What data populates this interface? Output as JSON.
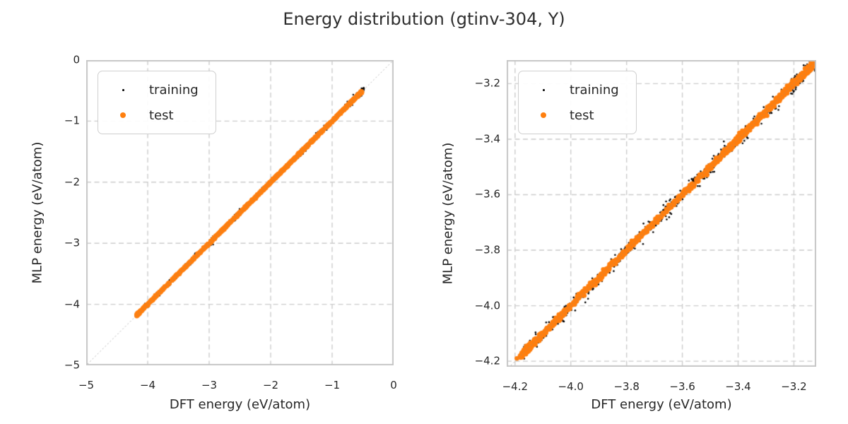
{
  "figure": {
    "title": "Energy distribution (gtinv-304, Y)",
    "background": "#ffffff",
    "text_color": "#262626",
    "grid_color": "#cccccc",
    "spine_color": "#c6c6c6",
    "identity_line_color": "#8f8f8f"
  },
  "chart_data": [
    {
      "id": "left",
      "type": "scatter",
      "xlabel": "DFT energy (eV/atom)",
      "ylabel": "MLP energy (eV/atom)",
      "xlim": [
        -5,
        0
      ],
      "ylim": [
        -5,
        0
      ],
      "xticks": [
        -5,
        -4,
        -3,
        -2,
        -1,
        0
      ],
      "xtick_labels": [
        "−5",
        "−4",
        "−3",
        "−2",
        "−1",
        "0"
      ],
      "yticks": [
        0,
        -1,
        -2,
        -3,
        -4,
        -5
      ],
      "ytick_labels": [
        "0",
        "−1",
        "−2",
        "−3",
        "−4",
        "−5"
      ],
      "grid": {
        "on": true,
        "style": "dashed",
        "color": "#cccccc"
      },
      "identity_line": {
        "shown": true,
        "style": "dotted",
        "color": "#8f8f8f"
      },
      "legend": {
        "position": "upper left",
        "items": [
          {
            "label": "training",
            "color": "#000000"
          },
          {
            "label": "test",
            "color": "#ff7f0e"
          }
        ]
      },
      "seed": 42,
      "series": [
        {
          "name": "training",
          "color": "#000000",
          "marker_px": 2.4,
          "count": 700,
          "band": [
            -4.168,
            -0.49
          ],
          "jitter": 0.022,
          "jitter_x": 0.008,
          "bias": 1.3,
          "clusters": [
            {
              "center": -0.56,
              "spread": 0.03,
              "count": 45
            },
            {
              "center": -2.52,
              "spread": 0.05,
              "count": 55
            },
            {
              "center": -1.52,
              "spread": 0.04,
              "count": 40
            },
            {
              "center": -2.95,
              "spread": 0.03,
              "count": 30
            }
          ]
        },
        {
          "name": "test",
          "color": "#ff7f0e",
          "marker_px": 6.6,
          "count": 950,
          "band": [
            -4.168,
            -0.52
          ],
          "jitter": 0.006,
          "jitter_x": 0.004,
          "bias": 1.3,
          "clusters": [
            {
              "center": -4.15,
              "spread": 0.018,
              "count": 70
            },
            {
              "center": -2.0,
              "spread": 0.45,
              "count": 80
            }
          ]
        }
      ]
    },
    {
      "id": "right",
      "type": "scatter",
      "xlabel": "DFT energy (eV/atom)",
      "ylabel": "MLP energy (eV/atom)",
      "xlim": [
        -4.23,
        -3.12
      ],
      "ylim": [
        -4.22,
        -3.115
      ],
      "xticks": [
        -4.2,
        -4.0,
        -3.8,
        -3.6,
        -3.4,
        -3.2
      ],
      "xtick_labels": [
        "−4.2",
        "−4.0",
        "−3.8",
        "−3.6",
        "−3.4",
        "−3.2"
      ],
      "yticks": [
        -3.2,
        -3.4,
        -3.6,
        -3.8,
        -4.0,
        -4.2
      ],
      "ytick_labels": [
        "−3.2",
        "−3.4",
        "−3.6",
        "−3.8",
        "−4.0",
        "−4.2"
      ],
      "grid": {
        "on": true,
        "style": "dashed",
        "color": "#cccccc"
      },
      "identity_line": {
        "shown": true,
        "style": "dotted",
        "color": "#8f8f8f"
      },
      "legend": {
        "position": "upper left",
        "items": [
          {
            "label": "training",
            "color": "#000000"
          },
          {
            "label": "test",
            "color": "#ff7f0e"
          }
        ]
      },
      "seed": 77,
      "series": [
        {
          "name": "training",
          "color": "#000000",
          "marker_px": 2.6,
          "count": 520,
          "band": [
            -4.168,
            -3.125
          ],
          "jitter": 0.012,
          "jitter_x": 0.005,
          "bias": 1.0,
          "clusters": [
            {
              "center": -3.33,
              "spread": 0.045,
              "count": 70
            },
            {
              "center": -3.17,
              "spread": 0.025,
              "count": 40
            },
            {
              "center": -3.56,
              "spread": 0.03,
              "count": 30
            },
            {
              "center": -3.95,
              "spread": 0.03,
              "count": 25
            }
          ]
        },
        {
          "name": "test",
          "color": "#ff7f0e",
          "marker_px": 6.6,
          "count": 820,
          "band": [
            -4.168,
            -3.13
          ],
          "jitter": 0.0045,
          "jitter_x": 0.003,
          "bias": 1.05,
          "clusters": [
            {
              "center": -4.16,
              "spread": 0.012,
              "count": 80
            },
            {
              "center": -3.4,
              "spread": 0.016,
              "count": 75
            },
            {
              "center": -3.2,
              "spread": 0.02,
              "count": 40
            },
            {
              "center": -3.14,
              "spread": 0.012,
              "count": 35
            }
          ]
        }
      ]
    }
  ]
}
